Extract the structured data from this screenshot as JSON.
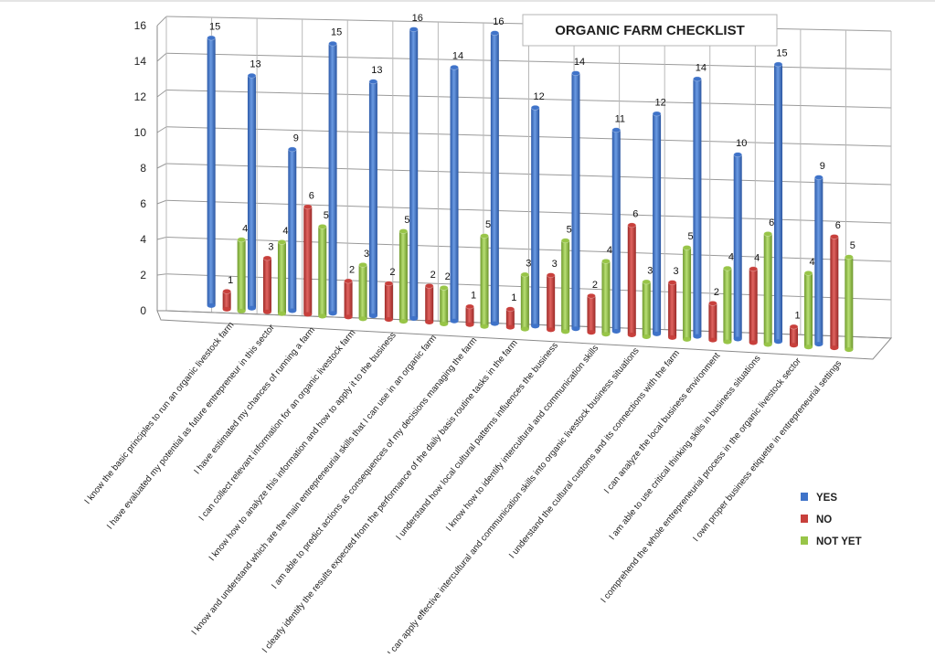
{
  "chart_data": {
    "type": "bar",
    "title": "ORGANIC FARM CHECKLIST",
    "xlabel": "",
    "ylabel": "",
    "ylim": [
      0,
      16
    ],
    "yticks": [
      0,
      2,
      4,
      6,
      8,
      10,
      12,
      14,
      16
    ],
    "grid": true,
    "legend_position": "bottom-right",
    "categories": [
      "I know the basic principles to run an organic livestock farm",
      "I have evaluated my potential as future entrepreneur in this sector",
      "I have estimated my chances of running a farm",
      "I can collect relevant information for an organic livestock farm",
      "I know how to analyze this information and how to apply it to the business",
      "I know and understand which are the main entrepreneurial skills that I can use in an organic farm",
      "I am able to predict actions as consequences of my decisions managing the farm",
      "I clearly identify the results expected from the performance of the daily basis routine tasks in the farm",
      "I understand how local cultural patterns influences the business",
      "I know how to identify intercultural and communication skills",
      "I can apply effective intercultural and communication skills into organic livestock business situations",
      "I understand the cultural customs and its connections with the farm",
      "I can analyze the local business environment",
      "I am able to use critical thinking skills in business situations",
      "I comprehend the whole entrepreneurial process in the organic livestock sector",
      "I own proper business etiquette in entrepreneurial settings"
    ],
    "series": [
      {
        "name": "YES",
        "color": "#3f73c9",
        "values": [
          15,
          13,
          9,
          15,
          13,
          16,
          14,
          16,
          12,
          14,
          11,
          12,
          14,
          10,
          15,
          9
        ]
      },
      {
        "name": "NO",
        "color": "#c8403c",
        "values": [
          1,
          3,
          6,
          2,
          2,
          2,
          1,
          1,
          3,
          2,
          6,
          3,
          2,
          4,
          1,
          6
        ]
      },
      {
        "name": "NOT YET",
        "color": "#98c548",
        "values": [
          4,
          4,
          5,
          3,
          5,
          2,
          5,
          3,
          5,
          4,
          3,
          5,
          4,
          6,
          4,
          5
        ]
      }
    ]
  }
}
